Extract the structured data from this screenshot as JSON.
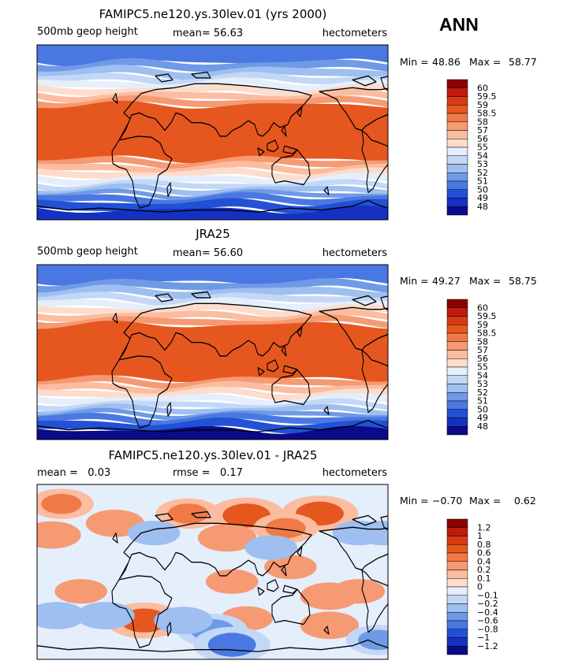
{
  "header": {
    "season": "ANN"
  },
  "chart_data": [
    {
      "type": "heatmap",
      "title": "FAMIPC5.ne120.ys.30lev.01 (yrs 2000)",
      "left_label": "500mb geop height",
      "center_label": "mean=  56.63",
      "units": "hectometers",
      "min_max": {
        "min_label": "Min =",
        "min": "48.86",
        "max_label": "Max =",
        "max": "58.77"
      },
      "colorbar": {
        "levels": [
          "60",
          "59.5",
          "59",
          "58.5",
          "58",
          "57",
          "56",
          "55",
          "54",
          "53",
          "52",
          "51",
          "50",
          "49",
          "48"
        ],
        "colors": [
          "#8b0000",
          "#c01a0c",
          "#d83a14",
          "#e6571f",
          "#f07a47",
          "#f59a73",
          "#fbbca0",
          "#fddccb",
          "#e5eefb",
          "#c3d7f7",
          "#9ebff0",
          "#6f9ae6",
          "#4a78e2",
          "#2250d6",
          "#1530c2",
          "#0a0a8a"
        ]
      },
      "anomalies": []
    },
    {
      "type": "heatmap",
      "title": "JRA25",
      "left_label": "500mb geop height",
      "center_label": "mean=  56.60",
      "units": "hectometers",
      "min_max": {
        "min_label": "Min =",
        "min": "49.27",
        "max_label": "Max =",
        "max": "58.75"
      },
      "colorbar": {
        "levels": [
          "60",
          "59.5",
          "59",
          "58.5",
          "58",
          "57",
          "56",
          "55",
          "54",
          "53",
          "52",
          "51",
          "50",
          "49",
          "48"
        ],
        "colors": [
          "#8b0000",
          "#c01a0c",
          "#d83a14",
          "#e6571f",
          "#f07a47",
          "#f59a73",
          "#fbbca0",
          "#fddccb",
          "#e5eefb",
          "#c3d7f7",
          "#9ebff0",
          "#6f9ae6",
          "#4a78e2",
          "#2250d6",
          "#1530c2",
          "#0a0a8a"
        ]
      },
      "anomalies": []
    },
    {
      "type": "heatmap",
      "title": "FAMIPC5.ne120.ys.30lev.01 - JRA25",
      "left_label": "mean =   0.03",
      "center_label": "rmse =   0.17",
      "units": "hectometers",
      "min_max": {
        "min_label": "Min =",
        "min": "−0.70",
        "max_label": "Max =",
        "max": "0.62"
      },
      "colorbar": {
        "levels": [
          "1.2",
          "1",
          "0.8",
          "0.6",
          "0.4",
          "0.2",
          "0.1",
          "0",
          "−0.1",
          "−0.2",
          "−0.4",
          "−0.6",
          "−0.8",
          "−1",
          "−1.2"
        ],
        "colors": [
          "#8b0000",
          "#c01a0c",
          "#d83a14",
          "#e6571f",
          "#f07a47",
          "#f59a73",
          "#fbbca0",
          "#fddccb",
          "#e5eefb",
          "#c3d7f7",
          "#9ebff0",
          "#6f9ae6",
          "#4a78e2",
          "#2250d6",
          "#1530c2",
          "#0a0a8a"
        ]
      },
      "anomalies": [
        {
          "lon": 155,
          "lat": 60,
          "value": 0.4
        },
        {
          "lon": 215,
          "lat": 58,
          "value": 0.6
        },
        {
          "lon": 290,
          "lat": 60,
          "value": 0.6
        },
        {
          "lon": 255,
          "lat": 45,
          "value": 0.4
        },
        {
          "lon": 15,
          "lat": 38,
          "value": 0.3
        },
        {
          "lon": 80,
          "lat": 50,
          "value": 0.3
        },
        {
          "lon": 25,
          "lat": 70,
          "value": 0.4
        },
        {
          "lon": 195,
          "lat": 35,
          "value": 0.3
        },
        {
          "lon": 45,
          "lat": -20,
          "value": 0.2
        },
        {
          "lon": 200,
          "lat": -10,
          "value": 0.2
        },
        {
          "lon": 260,
          "lat": 5,
          "value": 0.2
        },
        {
          "lon": 300,
          "lat": -25,
          "value": 0.3
        },
        {
          "lon": 330,
          "lat": -20,
          "value": 0.2
        },
        {
          "lon": 110,
          "lat": -50,
          "value": 0.6
        },
        {
          "lon": 215,
          "lat": -48,
          "value": 0.2
        },
        {
          "lon": 300,
          "lat": -55,
          "value": 0.3
        },
        {
          "lon": 180,
          "lat": -60,
          "value": -0.5
        },
        {
          "lon": 200,
          "lat": -75,
          "value": -0.6
        },
        {
          "lon": 350,
          "lat": -70,
          "value": -0.4
        },
        {
          "lon": 70,
          "lat": -45,
          "value": -0.3
        },
        {
          "lon": 150,
          "lat": -50,
          "value": -0.3
        },
        {
          "lon": 20,
          "lat": -45,
          "value": -0.3
        },
        {
          "lon": 355,
          "lat": 40,
          "value": -0.2
        },
        {
          "lon": 240,
          "lat": 25,
          "value": -0.2
        },
        {
          "lon": 330,
          "lat": 40,
          "value": -0.2
        },
        {
          "lon": 120,
          "lat": 40,
          "value": -0.2
        }
      ]
    }
  ]
}
